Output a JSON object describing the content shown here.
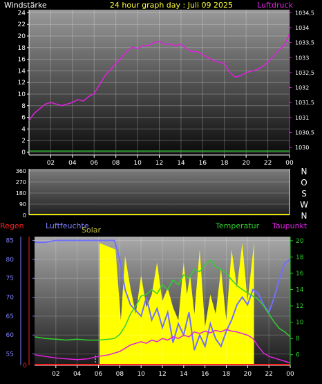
{
  "chart_data": [
    {
      "type": "line",
      "title": "24 hour graph day : Juli 09 2025",
      "left_label": "Windstärke",
      "right_label": "Luftdruck",
      "left_ticks": [
        0,
        2,
        4,
        6,
        8,
        10,
        12,
        14,
        16,
        18,
        20,
        22,
        24
      ],
      "right_ticks": [
        "1030",
        "1030,5",
        "1031",
        "1031,5",
        "1032",
        "1032,5",
        "1033",
        "1033,5",
        "1034",
        "1034,5"
      ],
      "x_ticks": [
        "02",
        "04",
        "06",
        "08",
        "10",
        "12",
        "14",
        "16",
        "18",
        "20",
        "22",
        "00"
      ],
      "xlim": [
        0,
        24
      ],
      "ylim_left": [
        0,
        25
      ],
      "ylim_right": [
        1029.75,
        1034.6
      ],
      "series": [
        {
          "name": "Luftdruck",
          "color": "#e020e0",
          "x": [
            0.0,
            0.5,
            1.0,
            1.5,
            2.0,
            2.5,
            3.0,
            3.5,
            4.0,
            4.5,
            5.0,
            5.5,
            6.0,
            6.5,
            7.0,
            7.5,
            8.0,
            8.5,
            9.0,
            9.5,
            10.0,
            10.5,
            11.0,
            11.5,
            12.0,
            12.5,
            13.0,
            13.5,
            14.0,
            14.5,
            15.0,
            15.5,
            16.0,
            16.5,
            17.0,
            17.5,
            18.0,
            18.5,
            19.0,
            19.5,
            20.0,
            20.5,
            21.0,
            21.5,
            22.0,
            22.5,
            23.0,
            23.5,
            24.0
          ],
          "values": [
            1030.9,
            1031.15,
            1031.3,
            1031.45,
            1031.5,
            1031.45,
            1031.4,
            1031.45,
            1031.5,
            1031.6,
            1031.55,
            1031.7,
            1031.8,
            1032.1,
            1032.4,
            1032.6,
            1032.8,
            1033.0,
            1033.2,
            1033.35,
            1033.3,
            1033.4,
            1033.4,
            1033.5,
            1033.55,
            1033.45,
            1033.45,
            1033.4,
            1033.45,
            1033.3,
            1033.2,
            1033.2,
            1033.1,
            1033.0,
            1032.9,
            1032.85,
            1032.8,
            1032.5,
            1032.35,
            1032.4,
            1032.5,
            1032.55,
            1032.6,
            1032.7,
            1032.85,
            1033.05,
            1033.25,
            1033.4,
            1033.8
          ]
        },
        {
          "name": "Windstärke",
          "color": "#30c030",
          "x": [
            0,
            24
          ],
          "values": [
            0.2,
            0.2
          ]
        }
      ]
    },
    {
      "type": "line",
      "left_ticks": [
        0,
        90,
        180,
        270,
        360
      ],
      "right_ticks": [
        "N",
        "W",
        "S",
        "O",
        "N"
      ],
      "xlim": [
        0,
        24
      ],
      "ylim": [
        0,
        360
      ],
      "series": [
        {
          "name": "Windrichtung",
          "color": "#e8e800",
          "x": [
            0,
            24
          ],
          "values": [
            0,
            0
          ]
        }
      ]
    },
    {
      "type": "line",
      "labels": {
        "rain": "Regen",
        "humidity": "Luftfeuchte",
        "solar": "Solar",
        "temperature": "Temperatur",
        "dewpoint": "Taupunkt"
      },
      "humidity_ticks": [
        55,
        60,
        65,
        70,
        75,
        80,
        85
      ],
      "rain_ticks": [
        0
      ],
      "temp_ticks": [
        6,
        8,
        10,
        12,
        14,
        16,
        18,
        20
      ],
      "x_ticks": [
        "02",
        "04",
        "06",
        "08",
        "10",
        "12",
        "14",
        "16",
        "18",
        "20",
        "22",
        "00"
      ],
      "xlim": [
        0,
        24
      ],
      "ylim_humidity": [
        52,
        86
      ],
      "ylim_temp": [
        4.7,
        20.5
      ],
      "series": [
        {
          "name": "Luftfeuchte",
          "color": "#7070ff",
          "x": [
            0,
            1,
            2,
            3,
            4,
            5,
            6,
            7,
            7.5,
            8,
            8.5,
            9,
            10,
            10.5,
            11,
            11.5,
            12,
            12.5,
            13,
            13.5,
            14,
            14.5,
            15,
            15.5,
            16,
            16.5,
            17,
            17.5,
            18,
            18.5,
            19,
            19.5,
            20,
            20.5,
            21,
            21.5,
            22,
            22.5,
            23,
            23.5,
            24
          ],
          "values": [
            84.5,
            84.5,
            85,
            85,
            85,
            85,
            85,
            85,
            85,
            80,
            72,
            68,
            65,
            70,
            64,
            67,
            62,
            66,
            58,
            63,
            60,
            66,
            56,
            60,
            57,
            63,
            59,
            57,
            61,
            64,
            68,
            70,
            68,
            72,
            71,
            68,
            66,
            70,
            75,
            79,
            80
          ]
        },
        {
          "name": "Temperatur",
          "color": "#30d030",
          "x": [
            0,
            1,
            2,
            3,
            4,
            5,
            6,
            7,
            7.5,
            8,
            8.5,
            9,
            9.5,
            10,
            10.5,
            11,
            11.5,
            12,
            12.5,
            13,
            13.5,
            14,
            14.5,
            15,
            15.5,
            16,
            16.5,
            17,
            17.5,
            18,
            18.5,
            19,
            19.5,
            20,
            20.5,
            21,
            21.5,
            22,
            22.5,
            23,
            23.5,
            24
          ],
          "values": [
            8.2,
            8.0,
            7.9,
            7.8,
            7.9,
            7.8,
            7.8,
            7.9,
            8.0,
            8.5,
            9.5,
            11.0,
            12.0,
            13.2,
            13.4,
            14.0,
            13.5,
            14.6,
            14.0,
            15.2,
            14.6,
            15.8,
            15.4,
            16.5,
            16.2,
            17.0,
            17.6,
            16.8,
            16.5,
            16.0,
            15.2,
            14.5,
            14.0,
            13.6,
            13.2,
            12.8,
            12.0,
            11.0,
            10.0,
            9.2,
            8.8,
            8.2
          ]
        },
        {
          "name": "Taupunkt",
          "color": "#e020e0",
          "x": [
            0,
            1,
            2,
            3,
            4,
            5,
            6,
            7,
            7.5,
            8,
            8.5,
            9,
            9.5,
            10,
            10.5,
            11,
            11.5,
            12,
            12.5,
            13,
            13.5,
            14,
            14.5,
            15,
            15.5,
            16,
            16.5,
            17,
            17.5,
            18,
            18.5,
            19,
            19.5,
            20,
            20.5,
            21,
            21.5,
            22,
            22.5,
            23,
            23.5,
            24
          ],
          "values": [
            6.0,
            5.8,
            5.6,
            5.5,
            5.4,
            5.5,
            5.8,
            6.0,
            6.2,
            6.4,
            6.8,
            7.2,
            7.4,
            7.6,
            7.4,
            7.8,
            7.6,
            8.0,
            7.8,
            8.2,
            8.0,
            8.4,
            8.2,
            8.8,
            8.6,
            8.9,
            8.7,
            9.0,
            8.8,
            9.1,
            8.9,
            8.8,
            8.6,
            8.4,
            8.0,
            7.0,
            6.2,
            5.8,
            5.6,
            5.4,
            5.2,
            5.0
          ]
        },
        {
          "name": "Solar",
          "color": "#ffff00",
          "x": [
            6.1,
            7.6,
            8.1,
            8.5,
            9.0,
            9.5,
            10.0,
            10.5,
            11.0,
            11.5,
            12.0,
            12.5,
            13.0,
            13.5,
            14.0,
            14.3,
            14.6,
            15.0,
            15.5,
            16.0,
            16.5,
            17.0,
            17.5,
            18.0,
            18.5,
            19.0,
            19.5,
            20.0,
            20.6
          ],
          "values": [
            0.95,
            0.9,
            0.35,
            0.85,
            0.6,
            0.4,
            0.7,
            0.45,
            0.55,
            0.8,
            0.5,
            0.6,
            0.45,
            0.35,
            0.8,
            0.55,
            0.7,
            0.4,
            0.9,
            0.3,
            0.55,
            0.4,
            0.75,
            0.35,
            0.9,
            0.6,
            0.95,
            0.5,
            0.95
          ]
        },
        {
          "name": "Regen",
          "color": "#ff2020",
          "x": [
            0,
            24
          ],
          "values": [
            0,
            0
          ]
        }
      ]
    }
  ]
}
